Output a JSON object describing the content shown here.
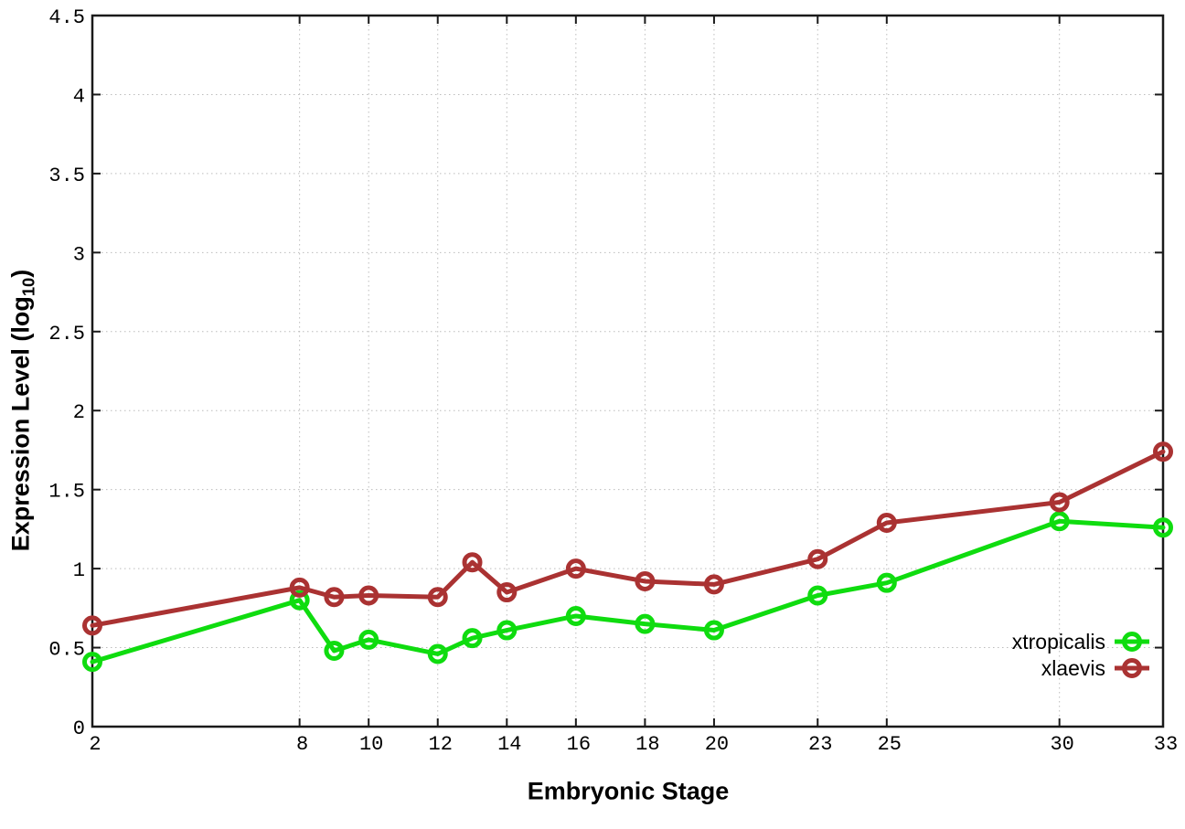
{
  "page": {
    "background": "#ffffff"
  },
  "chart_data": {
    "type": "line",
    "title": "",
    "xlabel": "Embryonic Stage",
    "ylabel": "Expression Level (log10)",
    "ylabel_parts": {
      "pre": "Expression Level (log",
      "sub": "10",
      "post": ")"
    },
    "xlim": [
      2,
      33
    ],
    "ylim": [
      0,
      4.5
    ],
    "xticks": [
      2,
      8,
      10,
      12,
      14,
      16,
      18,
      20,
      23,
      25,
      30,
      33
    ],
    "xtick_labels": [
      "2",
      "8",
      "10",
      "12",
      "14",
      "16",
      "18",
      "20",
      "23",
      "25",
      "30",
      "33"
    ],
    "yticks": [
      0,
      0.5,
      1,
      1.5,
      2,
      2.5,
      3,
      3.5,
      4,
      4.5
    ],
    "ytick_labels": [
      "0",
      "0.5",
      "1",
      "1.5",
      "2",
      "2.5",
      "3",
      "3.5",
      "4",
      "4.5"
    ],
    "grid": true,
    "grid_style": "dotted",
    "legend": {
      "position": "inside-bottom-right",
      "entries": [
        "xtropicalis",
        "xlaevis"
      ]
    },
    "x": [
      2,
      8,
      9,
      10,
      12,
      13,
      14,
      16,
      18,
      20,
      23,
      25,
      30,
      33
    ],
    "series": [
      {
        "name": "xtropicalis",
        "color": "#0fdc0f",
        "marker": "open-circle",
        "values": [
          0.41,
          0.8,
          0.48,
          0.55,
          0.46,
          0.56,
          0.61,
          0.7,
          0.65,
          0.61,
          0.83,
          0.91,
          1.3,
          1.26
        ]
      },
      {
        "name": "xlaevis",
        "color": "#aa3232",
        "marker": "open-circle",
        "values": [
          0.64,
          0.88,
          0.82,
          0.83,
          0.82,
          1.04,
          0.85,
          1.0,
          0.92,
          0.9,
          1.06,
          1.29,
          1.42,
          1.74
        ]
      }
    ],
    "axis_color": "#1a1a1a",
    "grid_color": "#bcbcbc",
    "text_color": "#000000"
  }
}
